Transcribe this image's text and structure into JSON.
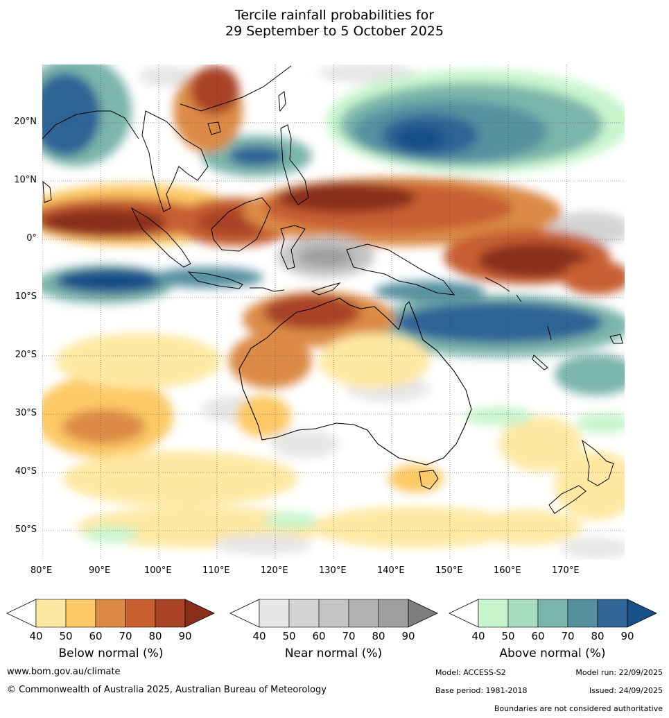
{
  "title": {
    "line1": "Tercile rainfall probabilities for",
    "line2": "29 September to 5 October 2025"
  },
  "map": {
    "lat_labels": [
      "20°N",
      "10°N",
      "0°",
      "10°S",
      "20°S",
      "30°S",
      "40°S",
      "50°S"
    ],
    "lon_labels": [
      "80°E",
      "90°E",
      "100°E",
      "110°E",
      "120°E",
      "130°E",
      "140°E",
      "150°E",
      "160°E",
      "170°E"
    ]
  },
  "colorbars": [
    {
      "title": "Below normal (%)",
      "ticks": [
        "40",
        "50",
        "60",
        "70",
        "80",
        "90"
      ],
      "colors": [
        "#ffffff",
        "#fee8a2",
        "#fdc966",
        "#dc8b46",
        "#c75f30",
        "#a94325",
        "#8a2e1c"
      ]
    },
    {
      "title": "Near normal (%)",
      "ticks": [
        "40",
        "50",
        "60",
        "70",
        "80",
        "90"
      ],
      "colors": [
        "#ffffff",
        "#e6e6e6",
        "#d4d4d4",
        "#c4c4c4",
        "#b2b2b2",
        "#9f9f9f",
        "#7e7e7e"
      ]
    },
    {
      "title": "Above normal (%)",
      "ticks": [
        "40",
        "50",
        "60",
        "70",
        "80",
        "90"
      ],
      "colors": [
        "#ffffff",
        "#c8f5cd",
        "#a6dcc0",
        "#7cb5ab",
        "#5791a0",
        "#2f6495",
        "#174f88"
      ]
    }
  ],
  "footer": {
    "website": "www.bom.gov.au/climate",
    "copyright": "© Commonwealth of Australia 2025, Australian Bureau of Meteorology",
    "model": "Model: ACCESS-S2",
    "model_run": "Model run: 22/09/2025",
    "base_period": "Base period: 1981-2018",
    "issued": "Issued: 24/09/2025",
    "disclaimer": "Boundaries are not considered authoritative"
  }
}
